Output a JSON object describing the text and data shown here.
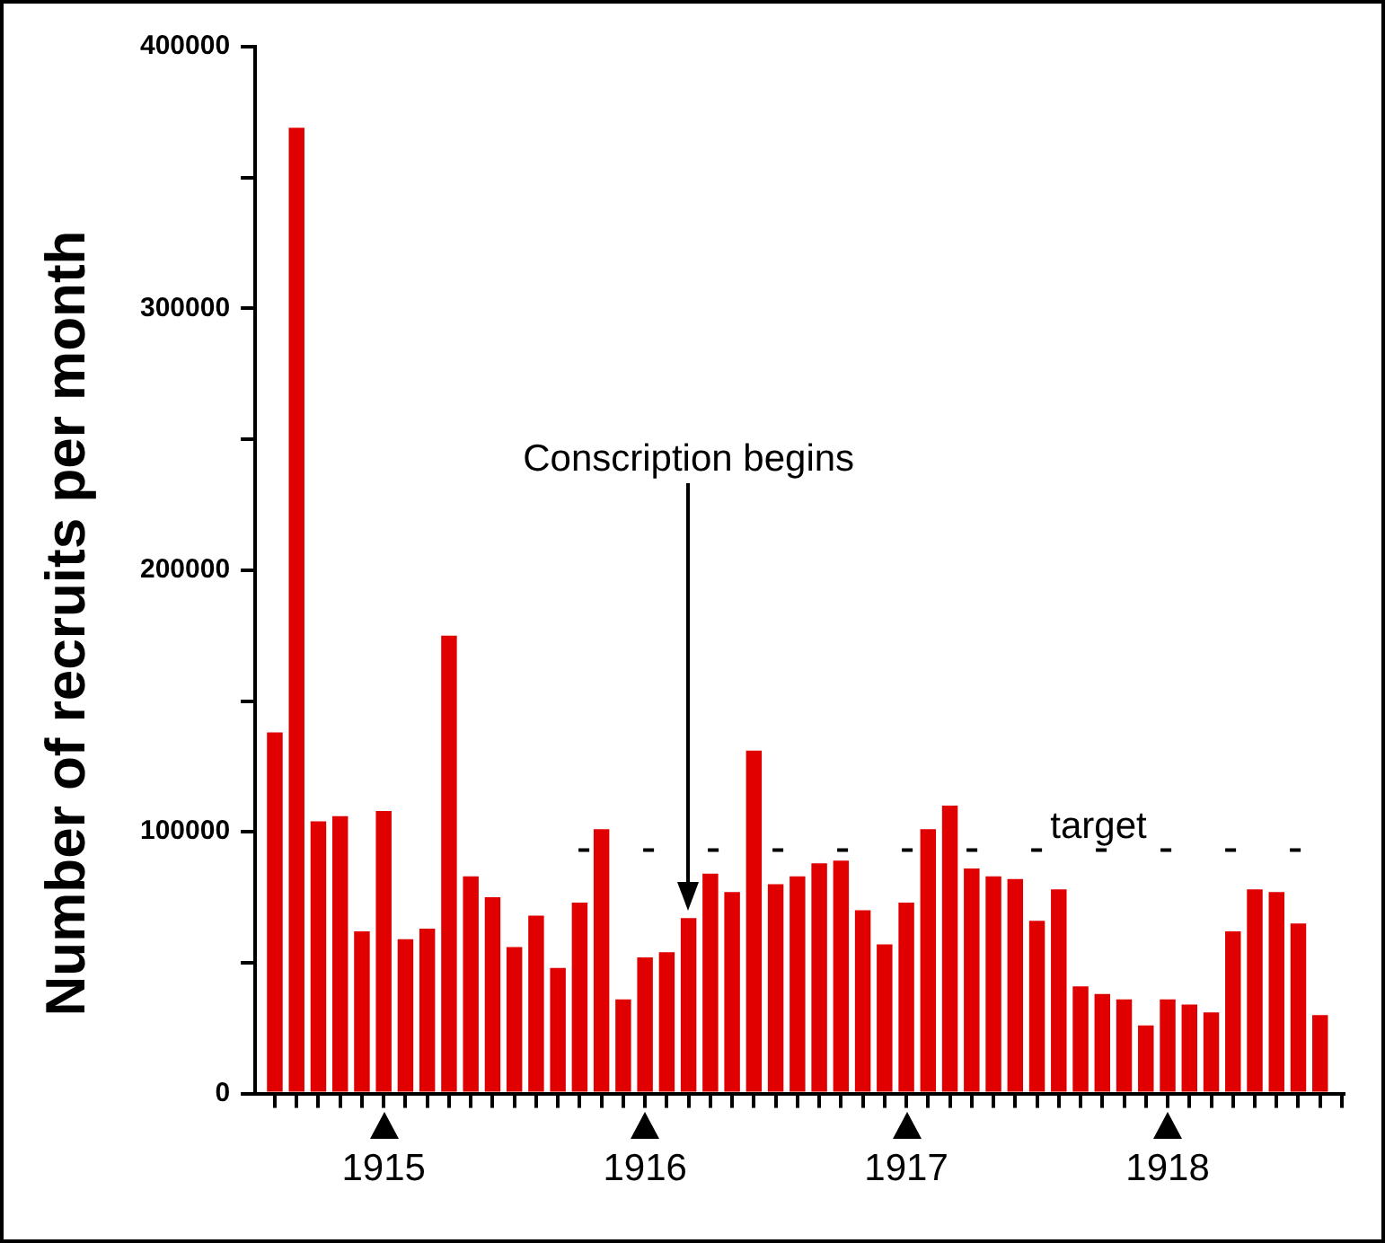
{
  "chart_data": {
    "type": "bar",
    "ylabel": "Number of recruits per month",
    "color": "#e00000",
    "x": [
      "1914-08",
      "1914-09",
      "1914-10",
      "1914-11",
      "1914-12",
      "1915-01",
      "1915-02",
      "1915-03",
      "1915-04",
      "1915-05",
      "1915-06",
      "1915-07",
      "1915-08",
      "1915-09",
      "1915-10",
      "1915-11",
      "1915-12",
      "1916-01",
      "1916-02",
      "1916-03",
      "1916-04",
      "1916-05",
      "1916-06",
      "1916-07",
      "1916-08",
      "1916-09",
      "1916-10",
      "1916-11",
      "1916-12",
      "1917-01",
      "1917-02",
      "1917-03",
      "1917-04",
      "1917-05",
      "1917-06",
      "1917-07",
      "1917-08",
      "1917-09",
      "1917-10",
      "1917-11",
      "1917-12",
      "1918-01",
      "1918-02",
      "1918-03",
      "1918-04",
      "1918-05",
      "1918-06",
      "1918-07",
      "1918-08"
    ],
    "values": [
      138000,
      369000,
      104000,
      106000,
      62000,
      108000,
      59000,
      63000,
      175000,
      83000,
      75000,
      56000,
      68000,
      48000,
      73000,
      101000,
      36000,
      52000,
      54000,
      67000,
      84000,
      77000,
      131000,
      80000,
      83000,
      88000,
      89000,
      70000,
      57000,
      73000,
      101000,
      110000,
      86000,
      83000,
      82000,
      66000,
      78000,
      41000,
      38000,
      36000,
      26000,
      36000,
      34000,
      31000,
      62000,
      78000,
      77000,
      65000,
      30000
    ],
    "xticks": [
      {
        "value": "1914-08",
        "label": null
      },
      {
        "value": "1914-09",
        "label": null
      },
      {
        "value": "1914-10",
        "label": null
      },
      {
        "value": "1914-11",
        "label": null
      },
      {
        "value": "1914-12",
        "label": null
      },
      {
        "value": "1915-01",
        "label": "1915"
      },
      {
        "value": "1915-02",
        "label": null
      },
      {
        "value": "1915-03",
        "label": null
      },
      {
        "value": "1915-04",
        "label": null
      },
      {
        "value": "1915-05",
        "label": null
      },
      {
        "value": "1915-06",
        "label": null
      },
      {
        "value": "1915-07",
        "label": null
      },
      {
        "value": "1915-08",
        "label": null
      },
      {
        "value": "1915-09",
        "label": null
      },
      {
        "value": "1915-10",
        "label": null
      },
      {
        "value": "1915-11",
        "label": null
      },
      {
        "value": "1915-12",
        "label": null
      },
      {
        "value": "1916-01",
        "label": "1916"
      },
      {
        "value": "1916-02",
        "label": null
      },
      {
        "value": "1916-03",
        "label": null
      },
      {
        "value": "1916-04",
        "label": null
      },
      {
        "value": "1916-05",
        "label": null
      },
      {
        "value": "1916-06",
        "label": null
      },
      {
        "value": "1916-07",
        "label": null
      },
      {
        "value": "1916-08",
        "label": null
      },
      {
        "value": "1916-09",
        "label": null
      },
      {
        "value": "1916-10",
        "label": null
      },
      {
        "value": "1916-11",
        "label": null
      },
      {
        "value": "1916-12",
        "label": null
      },
      {
        "value": "1917-01",
        "label": "1917"
      },
      {
        "value": "1917-02",
        "label": null
      },
      {
        "value": "1917-03",
        "label": null
      },
      {
        "value": "1917-04",
        "label": null
      },
      {
        "value": "1917-05",
        "label": null
      },
      {
        "value": "1917-06",
        "label": null
      },
      {
        "value": "1917-07",
        "label": null
      },
      {
        "value": "1917-08",
        "label": null
      },
      {
        "value": "1917-09",
        "label": null
      },
      {
        "value": "1917-10",
        "label": null
      },
      {
        "value": "1917-11",
        "label": null
      },
      {
        "value": "1917-12",
        "label": null
      },
      {
        "value": "1918-01",
        "label": "1918"
      },
      {
        "value": "1918-02",
        "label": null
      },
      {
        "value": "1918-03",
        "label": null
      },
      {
        "value": "1918-04",
        "label": null
      },
      {
        "value": "1918-05",
        "label": null
      },
      {
        "value": "1918-06",
        "label": null
      },
      {
        "value": "1918-07",
        "label": null
      },
      {
        "value": "1918-08",
        "label": null
      },
      {
        "value": "1918-09",
        "label": null
      }
    ],
    "xlim": [
      "1914-07-04",
      "1918-09-03"
    ],
    "ylim": [
      0,
      400000
    ],
    "yticks": [
      0,
      {
        "value": 50000,
        "label": null
      },
      100000,
      {
        "value": 150000,
        "label": null
      },
      200000,
      {
        "value": 250000,
        "label": null
      },
      300000,
      {
        "value": 350000,
        "label": null
      },
      400000
    ],
    "ref_lines": [
      {
        "axis": "y",
        "value": 93000,
        "label": "target",
        "line_style": "dashed",
        "color": "#000000"
      }
    ],
    "annotations": [
      {
        "text": "Conscription begins",
        "x": "1916-03"
      }
    ],
    "grid": false,
    "legend": false
  }
}
